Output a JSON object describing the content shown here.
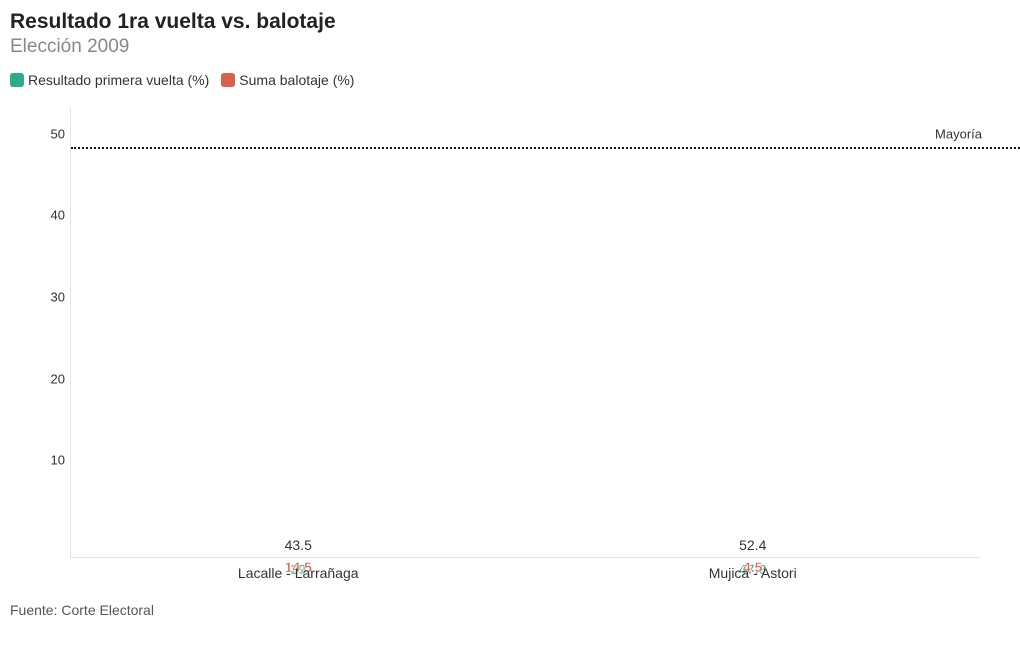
{
  "title": "Resultado 1ra vuelta vs. balotaje",
  "subtitle": "Elección 2009",
  "legend": {
    "series_a": "Resultado primera vuelta (%)",
    "series_b": "Suma balotaje (%)"
  },
  "chart": {
    "type": "stacked_bar",
    "ymax": 55,
    "yticks": [
      10,
      20,
      30,
      40,
      50
    ],
    "majority_value": 50,
    "majority_label": "Mayoría",
    "colors": {
      "series_a": "#2eaa8a",
      "series_b": "#d9604c",
      "grid": "#bbbbbb",
      "axis": "#e3e3e3",
      "background": "#ffffff"
    },
    "categories": [
      {
        "label": "Lacalle - Larrañaga",
        "series_a": 29,
        "series_b": 14.5,
        "total": 43.5,
        "series_a_label": "29",
        "series_b_label": "14.5",
        "total_label": "43.5"
      },
      {
        "label": "Mujica - Astori",
        "series_a": 47.9,
        "series_b": 4.5,
        "total": 52.4,
        "series_a_label": "47.9",
        "series_b_label": "4.5",
        "total_label": "52.4"
      }
    ]
  },
  "source": "Fuente: Corte Electoral"
}
